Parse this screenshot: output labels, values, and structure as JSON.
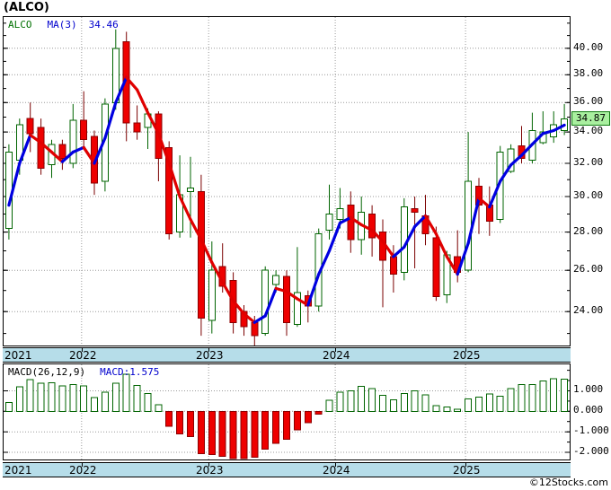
{
  "header": {
    "title": "(ALCO)"
  },
  "legend": {
    "symbol": "ALCO",
    "ma_label": "MA(3)",
    "ma_value": "34.46"
  },
  "price_badge": "34.87",
  "macd_legend": {
    "label": "MACD(26,12,9)",
    "value": "MACD:1.575"
  },
  "copyright": "©12Stocks.com",
  "colors": {
    "up": "#006400",
    "up_fill": "#ffffff",
    "down_fill": "#ee0000",
    "down_border": "#8b0000",
    "down_wick": "#7b0000",
    "ma_up": "#0000e0",
    "ma_down": "#e00000",
    "grid": "#999999",
    "band_bg": "#b6dde9",
    "badge_bg": "#a9ef9f",
    "badge_border": "#117a11",
    "legend_symbol": "#007000",
    "legend_blue": "#0000cd"
  },
  "chart_data": [
    {
      "type": "candlestick",
      "title": "ALCO price with MA(3) overlay",
      "legend": [
        "ALCO",
        "MA(3) 34.46"
      ],
      "last_price": 34.87,
      "ma_period": 3,
      "ma_last": 34.46,
      "y_axis": {
        "side": "right",
        "scale": "log",
        "min": 22.47,
        "max": 42.5,
        "major_ticks": [
          {
            "value": 40,
            "label": "40.00"
          },
          {
            "value": 38,
            "label": "38.00"
          },
          {
            "value": 36,
            "label": "36.00"
          },
          {
            "value": 34,
            "label": "34.00"
          },
          {
            "value": 32,
            "label": "32.00"
          },
          {
            "value": 30,
            "label": "30.00"
          },
          {
            "value": 28,
            "label": "28.00"
          },
          {
            "value": 26,
            "label": "26.00"
          },
          {
            "value": 24,
            "label": "24.00"
          }
        ],
        "minor_step": 1
      },
      "x_axis": {
        "year_ticks": [
          {
            "label": "2021",
            "index": -0.45,
            "align": "left",
            "gridline": false
          },
          {
            "label": "2022",
            "index": 6.8
          },
          {
            "label": "2023",
            "index": 18.7
          },
          {
            "label": "2024",
            "index": 30.55
          },
          {
            "label": "2025",
            "index": 42.75
          }
        ]
      },
      "candles_format": [
        "open",
        "high",
        "low",
        "close"
      ],
      "candles": [
        [
          28.2,
          33.2,
          27.6,
          32.7
        ],
        [
          32.2,
          34.9,
          31.3,
          34.5
        ],
        [
          34.9,
          36.0,
          32.7,
          33.9
        ],
        [
          34.3,
          34.9,
          31.3,
          31.7
        ],
        [
          31.9,
          33.5,
          31.1,
          33.2
        ],
        [
          33.2,
          33.5,
          31.6,
          32.3
        ],
        [
          32.0,
          35.9,
          31.7,
          34.8
        ],
        [
          34.8,
          36.8,
          32.9,
          33.5
        ],
        [
          33.7,
          34.1,
          30.1,
          30.8
        ],
        [
          30.9,
          36.3,
          30.3,
          35.9
        ],
        [
          36.0,
          41.5,
          35.5,
          40.0
        ],
        [
          40.5,
          41.3,
          33.4,
          34.6
        ],
        [
          34.6,
          35.8,
          33.5,
          34.0
        ],
        [
          34.3,
          35.6,
          32.9,
          35.2
        ],
        [
          35.2,
          35.4,
          30.9,
          32.3
        ],
        [
          33.0,
          33.4,
          27.6,
          27.9
        ],
        [
          28.0,
          32.5,
          27.7,
          30.1
        ],
        [
          30.3,
          32.4,
          27.7,
          30.5
        ],
        [
          30.3,
          31.3,
          22.9,
          23.7
        ],
        [
          23.6,
          27.5,
          23.0,
          26.0
        ],
        [
          26.2,
          27.4,
          24.9,
          25.2
        ],
        [
          25.5,
          25.9,
          23.0,
          23.5
        ],
        [
          24.0,
          24.3,
          22.9,
          23.3
        ],
        [
          23.5,
          23.8,
          22.4,
          22.9
        ],
        [
          23.0,
          26.2,
          22.9,
          26.0
        ],
        [
          25.3,
          26.0,
          24.9,
          25.75
        ],
        [
          25.7,
          26.0,
          22.9,
          23.5
        ],
        [
          23.4,
          27.2,
          23.3,
          24.9
        ],
        [
          24.75,
          25.0,
          23.5,
          24.25
        ],
        [
          24.25,
          28.2,
          24.0,
          27.9
        ],
        [
          28.1,
          30.7,
          27.6,
          29.0
        ],
        [
          28.7,
          30.5,
          28.2,
          29.3
        ],
        [
          29.5,
          30.3,
          26.9,
          27.6
        ],
        [
          27.6,
          30.0,
          26.8,
          29.1
        ],
        [
          29.0,
          29.5,
          26.7,
          27.7
        ],
        [
          28.0,
          28.7,
          24.2,
          26.5
        ],
        [
          26.7,
          27.3,
          24.9,
          25.8
        ],
        [
          25.9,
          29.9,
          25.5,
          29.4
        ],
        [
          29.3,
          30.0,
          26.1,
          29.1
        ],
        [
          28.9,
          30.1,
          27.3,
          27.9
        ],
        [
          27.7,
          28.3,
          24.5,
          24.7
        ],
        [
          24.8,
          27.0,
          24.4,
          26.8
        ],
        [
          26.7,
          28.1,
          25.4,
          25.9
        ],
        [
          26.0,
          34.0,
          25.9,
          30.9
        ],
        [
          30.6,
          31.1,
          27.9,
          29.5
        ],
        [
          29.5,
          30.6,
          27.8,
          28.6
        ],
        [
          28.7,
          33.1,
          28.5,
          32.7
        ],
        [
          31.5,
          33.2,
          31.4,
          32.9
        ],
        [
          33.1,
          34.4,
          32.0,
          32.3
        ],
        [
          32.2,
          35.3,
          32.0,
          34.1
        ],
        [
          33.3,
          35.4,
          33.2,
          34.0
        ],
        [
          33.7,
          35.4,
          33.3,
          34.5
        ],
        [
          34.1,
          35.9,
          33.8,
          34.87
        ]
      ],
      "ma": [
        29.5,
        32.0,
        33.8,
        33.3,
        32.7,
        32.1,
        32.7,
        33.0,
        32.0,
        33.6,
        36.0,
        37.8,
        36.9,
        35.3,
        33.9,
        32.0,
        30.0,
        28.7,
        27.6,
        26.4,
        25.4,
        24.5,
        23.9,
        23.5,
        23.8,
        25.1,
        24.95,
        24.6,
        24.3,
        25.8,
        27.0,
        28.5,
        28.8,
        28.4,
        28.1,
        27.5,
        26.7,
        27.2,
        28.3,
        28.9,
        27.9,
        26.7,
        25.8,
        27.4,
        29.9,
        29.4,
        30.9,
        31.9,
        32.5,
        33.2,
        33.9,
        34.1,
        34.46
      ]
    },
    {
      "type": "bar",
      "title": "MACD(26,12,9) histogram",
      "last_value": 1.575,
      "y_axis": {
        "side": "right",
        "scale": "linear",
        "min": -2.35,
        "max": 2.29,
        "major_ticks": [
          {
            "value": 1,
            "label": "1.000"
          },
          {
            "value": 0,
            "label": "0.000"
          },
          {
            "value": -1,
            "label": "-1.000"
          },
          {
            "value": -2,
            "label": "-2.000"
          }
        ],
        "minor_step": 0.5
      },
      "values": [
        0.44,
        1.19,
        1.54,
        1.37,
        1.4,
        1.23,
        1.3,
        1.23,
        0.66,
        0.94,
        1.37,
        1.8,
        1.26,
        0.87,
        0.33,
        -0.73,
        -1.1,
        -1.24,
        -2.06,
        -2.1,
        -2.2,
        -2.3,
        -2.3,
        -2.25,
        -1.85,
        -1.56,
        -1.37,
        -0.91,
        -0.56,
        -0.14,
        0.53,
        0.93,
        0.99,
        1.21,
        1.1,
        0.79,
        0.56,
        0.86,
        0.99,
        0.81,
        0.27,
        0.21,
        0.1,
        0.6,
        0.7,
        0.84,
        0.74,
        1.1,
        1.31,
        1.31,
        1.49,
        1.6,
        1.575
      ]
    }
  ]
}
